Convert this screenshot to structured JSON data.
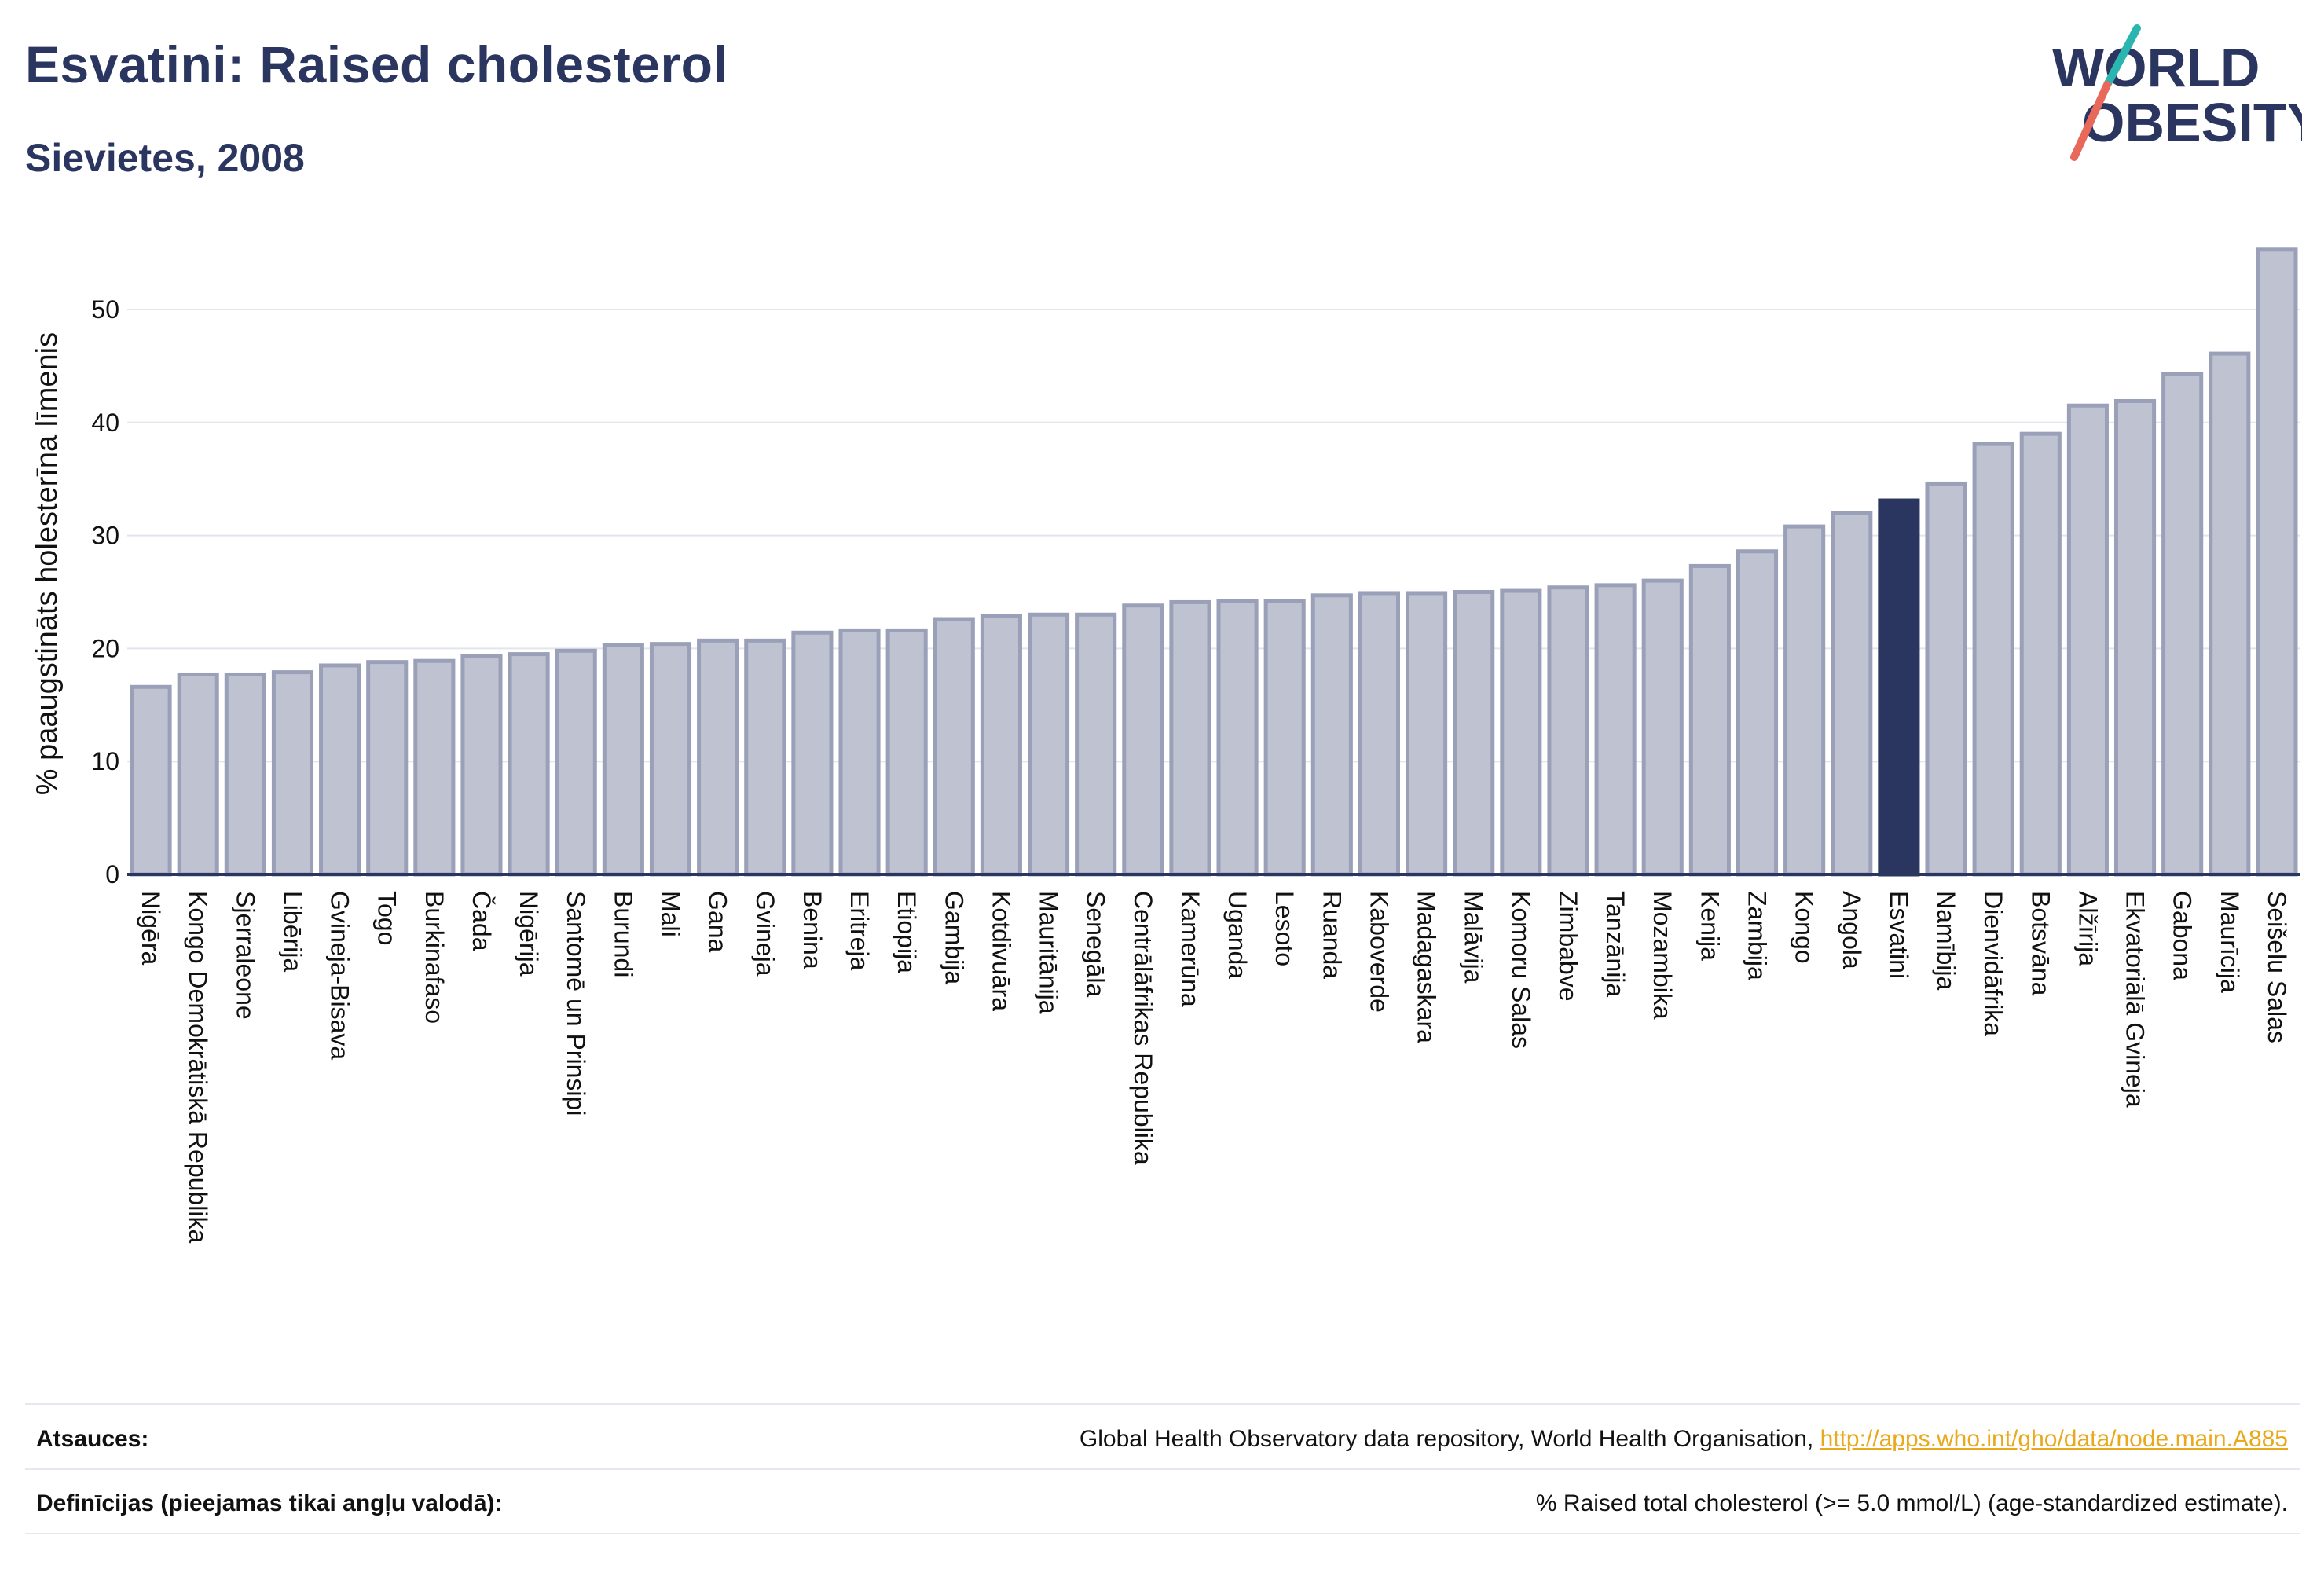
{
  "header": {
    "title": "Esvatini: Raised cholesterol",
    "subtitle": "Sievietes, 2008"
  },
  "logo": {
    "line1": "WORLD",
    "line2": "OBESITY",
    "colors": {
      "text": "#2b3660",
      "slash_top": "#2bb5b0",
      "slash_bottom": "#e8685a"
    }
  },
  "colors": {
    "bar_fill": "#bfc3d1",
    "bar_stroke": "#9aa0b8",
    "highlight": "#2b3660",
    "grid": "#e3e5ec",
    "axis": "#2b3660"
  },
  "chart_data": {
    "type": "bar",
    "ylabel": "% paaugstināts holesterīna līmenis",
    "ylim": [
      0,
      56
    ],
    "yticks": [
      0,
      10,
      20,
      30,
      40,
      50
    ],
    "highlight": "Esvatini",
    "categories": [
      "Nigēra",
      "Kongo Demokrātiskā Republika",
      "Sjerraleone",
      "Libērija",
      "Gvineja-Bisava",
      "Togo",
      "Burkinafaso",
      "Čada",
      "Nigērija",
      "Santomē un Prinsipi",
      "Burundi",
      "Mali",
      "Gana",
      "Gvineja",
      "Benina",
      "Eritreja",
      "Etiopija",
      "Gambija",
      "Kotdivuāra",
      "Mauritānija",
      "Senegāla",
      "Centrālāfrikas Republika",
      "Kamerūna",
      "Uganda",
      "Lesoto",
      "Ruanda",
      "Kaboverde",
      "Madagaskara",
      "Malāvija",
      "Komoru Salas",
      "Zimbabve",
      "Tanzānija",
      "Mozambika",
      "Kenija",
      "Zambija",
      "Kongo",
      "Angola",
      "Esvatini",
      "Namībija",
      "Dienvidāfrika",
      "Botsvāna",
      "Alžīrija",
      "Ekvatoriālā Gvineja",
      "Gabona",
      "Maurīcija",
      "Seišelu Salas"
    ],
    "values": [
      16.6,
      17.7,
      17.7,
      17.9,
      18.5,
      18.8,
      18.9,
      19.3,
      19.5,
      19.8,
      20.3,
      20.4,
      20.7,
      20.7,
      21.4,
      21.6,
      21.6,
      22.6,
      22.9,
      23.0,
      23.0,
      23.8,
      24.1,
      24.2,
      24.2,
      24.7,
      24.9,
      24.9,
      25.0,
      25.1,
      25.4,
      25.6,
      26.0,
      27.3,
      28.6,
      30.8,
      32.0,
      33.1,
      34.6,
      38.1,
      39.0,
      41.5,
      41.9,
      44.3,
      46.1,
      55.3
    ]
  },
  "footer": {
    "sources_label": "Atsauces:",
    "sources_text": "Global Health Observatory data repository, World Health Organisation, ",
    "sources_link": "http://apps.who.int/gho/data/node.main.A885",
    "definitions_label": "Definīcijas (pieejamas tikai angļu valodā):",
    "definitions_text": "% Raised total cholesterol (>= 5.0 mmol/L) (age-standardized estimate)."
  }
}
